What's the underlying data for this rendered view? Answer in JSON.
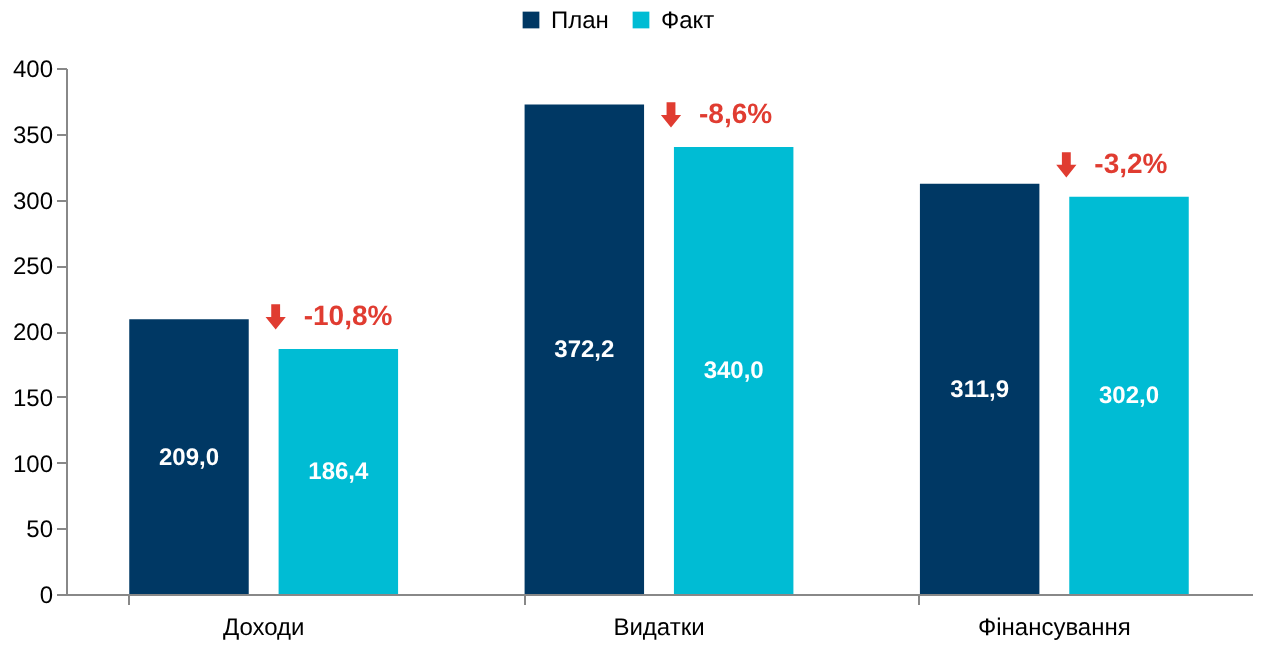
{
  "chart_data": {
    "type": "bar",
    "categories": [
      "Доходи",
      "Видатки",
      "Фінансування"
    ],
    "series": [
      {
        "name": "План",
        "color": "#003864",
        "values": [
          209.0,
          372.2,
          311.9
        ],
        "value_labels": [
          "209,0",
          "372,2",
          "311,9"
        ]
      },
      {
        "name": "Факт",
        "color": "#00bcd4",
        "values": [
          186.4,
          340.0,
          302.0
        ],
        "value_labels": [
          "186,4",
          "340,0",
          "302,0"
        ]
      }
    ],
    "ylim": [
      0,
      400
    ],
    "yticks": [
      0,
      50,
      100,
      150,
      200,
      250,
      300,
      350,
      400
    ],
    "grid": false,
    "legend": "top",
    "annotations": [
      "-10,8%",
      "-8,6%",
      "-3,2%"
    ]
  }
}
